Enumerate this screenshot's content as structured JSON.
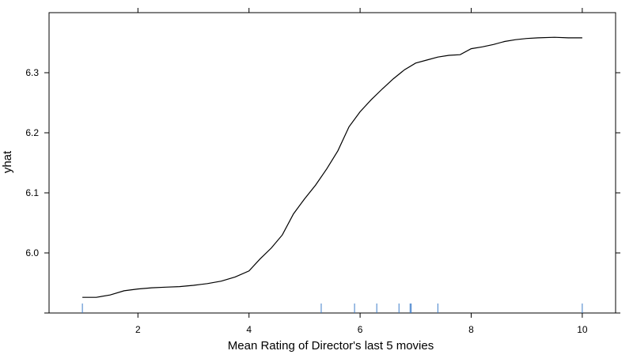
{
  "chart_data": {
    "type": "line",
    "title": "",
    "xlabel": "Mean Rating of Director's last 5 movies",
    "ylabel": "yhat",
    "xlim": [
      0.4,
      10.6
    ],
    "ylim": [
      5.9,
      6.4
    ],
    "x_ticks": [
      2,
      4,
      6,
      8,
      10
    ],
    "x_tick_labels": [
      "2",
      "4",
      "6",
      "8",
      "10"
    ],
    "y_ticks": [
      5.9,
      6.0,
      6.1,
      6.2,
      6.3
    ],
    "y_tick_labels": [
      "",
      "6.0",
      "6.1",
      "6.2",
      "6.3"
    ],
    "grid": false,
    "series": [
      {
        "x": [
          1.0,
          1.25,
          1.5,
          1.75,
          2.0,
          2.25,
          2.5,
          2.75,
          3.0,
          3.25,
          3.5,
          3.75,
          4.0,
          4.2,
          4.4,
          4.6,
          4.8,
          5.0,
          5.2,
          5.4,
          5.6,
          5.8,
          6.0,
          6.2,
          6.4,
          6.6,
          6.8,
          7.0,
          7.2,
          7.4,
          7.6,
          7.8,
          8.0,
          8.2,
          8.4,
          8.6,
          8.8,
          9.0,
          9.2,
          9.5,
          9.75,
          10.0
        ],
        "y": [
          5.926,
          5.926,
          5.93,
          5.937,
          5.94,
          5.942,
          5.943,
          5.944,
          5.946,
          5.949,
          5.953,
          5.96,
          5.97,
          5.99,
          6.008,
          6.03,
          6.065,
          6.09,
          6.113,
          6.14,
          6.17,
          6.21,
          6.235,
          6.255,
          6.273,
          6.29,
          6.305,
          6.316,
          6.321,
          6.326,
          6.329,
          6.33,
          6.34,
          6.343,
          6.347,
          6.352,
          6.355,
          6.357,
          6.358,
          6.359,
          6.358,
          6.358
        ]
      }
    ],
    "rug_x": [
      1.0,
      5.3,
      5.9,
      6.3,
      6.7,
      6.9,
      6.92,
      7.4,
      10.0
    ],
    "line_color": "#000000",
    "rug_color": "#3d7dca",
    "frame_color": "#000000"
  }
}
